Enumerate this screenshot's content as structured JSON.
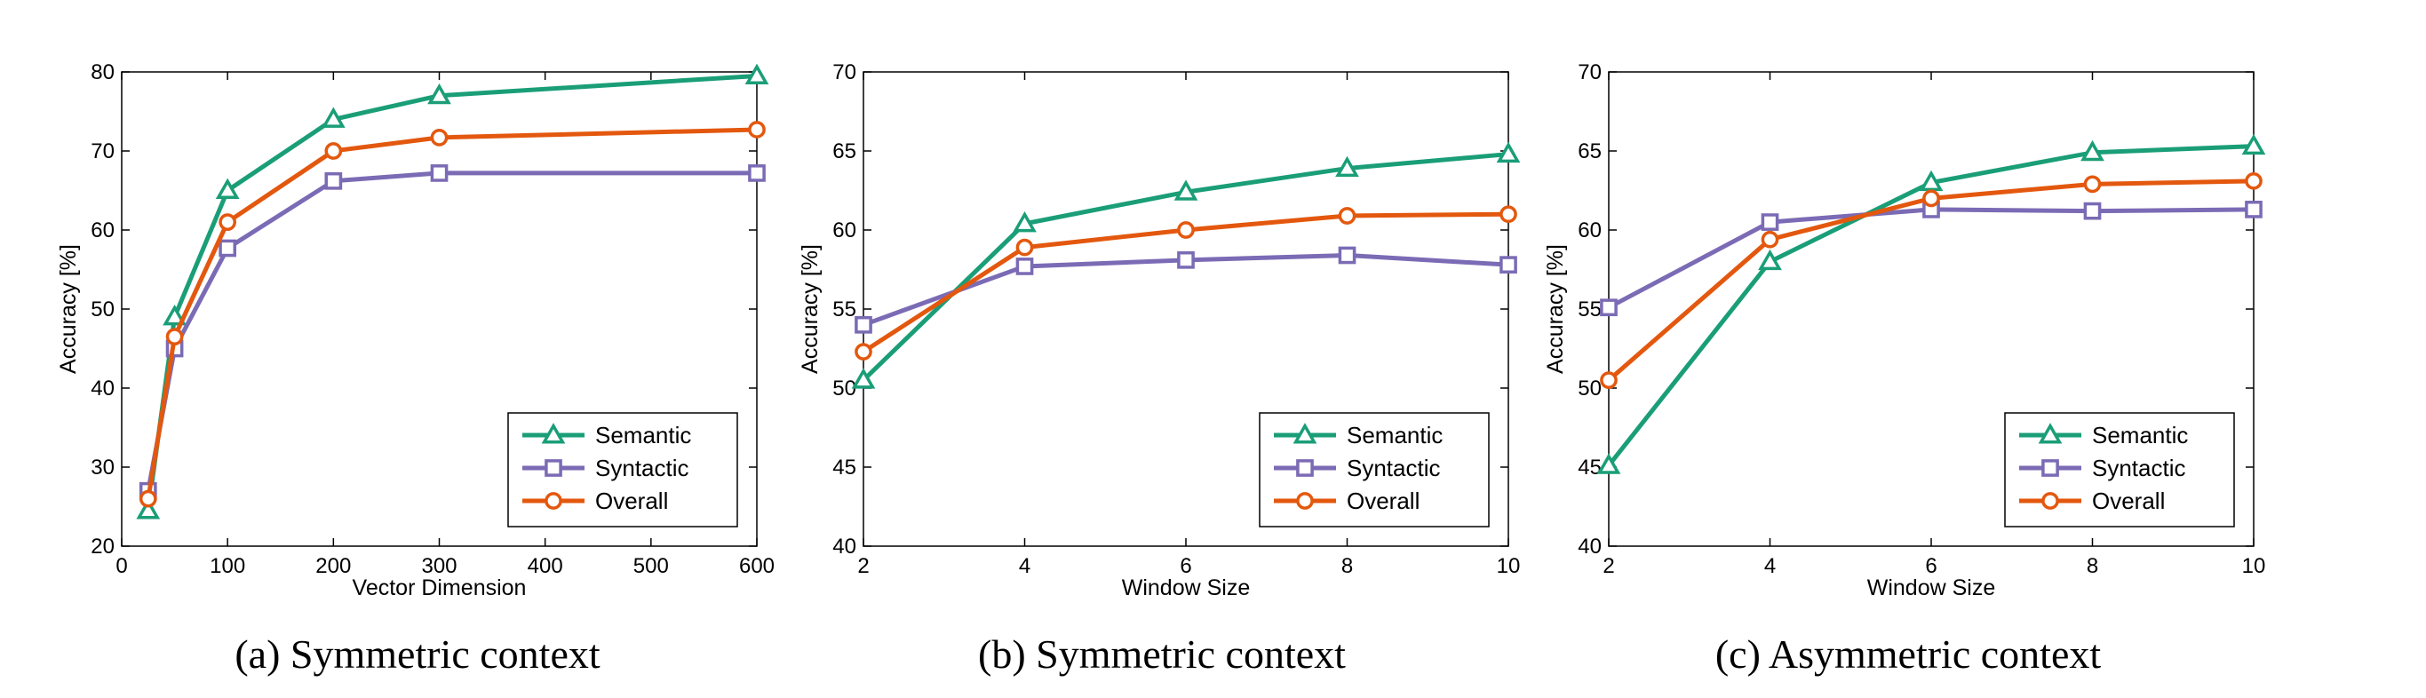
{
  "colors": {
    "Semantic": "#1a9e77",
    "Syntactic": "#7b6bb5",
    "Overall": "#e3580e"
  },
  "markers": {
    "Semantic": "triangle",
    "Syntactic": "square",
    "Overall": "circle"
  },
  "chart_data": [
    {
      "type": "line",
      "caption": "(a)  Symmetric context",
      "xlabel": "Vector Dimension",
      "ylabel": "Accuracy [%]",
      "xlim": [
        0,
        600
      ],
      "ylim": [
        20,
        80
      ],
      "xticks": [
        0,
        100,
        200,
        300,
        400,
        500,
        600
      ],
      "yticks": [
        20,
        30,
        40,
        50,
        60,
        70,
        80
      ],
      "legend_position": "bottom-right",
      "x": [
        25,
        50,
        100,
        200,
        300,
        600
      ],
      "series": [
        {
          "name": "Semantic",
          "values": [
            24.5,
            49,
            65,
            74,
            77,
            79.5
          ]
        },
        {
          "name": "Syntactic",
          "values": [
            27,
            45,
            57.7,
            66.2,
            67.2,
            67.2
          ]
        },
        {
          "name": "Overall",
          "values": [
            26,
            46.5,
            61,
            70,
            71.7,
            72.7
          ]
        }
      ]
    },
    {
      "type": "line",
      "caption": "(b)  Symmetric context",
      "xlabel": "Window Size",
      "ylabel": "Accuracy [%]",
      "xlim": [
        2,
        10
      ],
      "ylim": [
        40,
        70
      ],
      "xticks": [
        2,
        4,
        6,
        8,
        10
      ],
      "yticks": [
        40,
        45,
        50,
        55,
        60,
        65,
        70
      ],
      "legend_position": "bottom-right",
      "x": [
        2,
        4,
        6,
        8,
        10
      ],
      "series": [
        {
          "name": "Semantic",
          "values": [
            50.5,
            60.4,
            62.4,
            63.9,
            64.8
          ]
        },
        {
          "name": "Syntactic",
          "values": [
            54,
            57.7,
            58.1,
            58.4,
            57.8
          ]
        },
        {
          "name": "Overall",
          "values": [
            52.3,
            58.9,
            60.0,
            60.9,
            61.0
          ]
        }
      ]
    },
    {
      "type": "line",
      "caption": "(c)  Asymmetric context",
      "xlabel": "Window Size",
      "ylabel": "Accuracy [%]",
      "xlim": [
        2,
        10
      ],
      "ylim": [
        40,
        70
      ],
      "xticks": [
        2,
        4,
        6,
        8,
        10
      ],
      "yticks": [
        40,
        45,
        50,
        55,
        60,
        65,
        70
      ],
      "legend_position": "bottom-right",
      "x": [
        2,
        4,
        6,
        8,
        10
      ],
      "series": [
        {
          "name": "Semantic",
          "values": [
            45.1,
            58,
            63,
            64.9,
            65.3
          ]
        },
        {
          "name": "Syntactic",
          "values": [
            55.1,
            60.5,
            61.3,
            61.2,
            61.3
          ]
        },
        {
          "name": "Overall",
          "values": [
            50.5,
            59.4,
            62,
            62.9,
            63.1
          ]
        }
      ]
    }
  ]
}
